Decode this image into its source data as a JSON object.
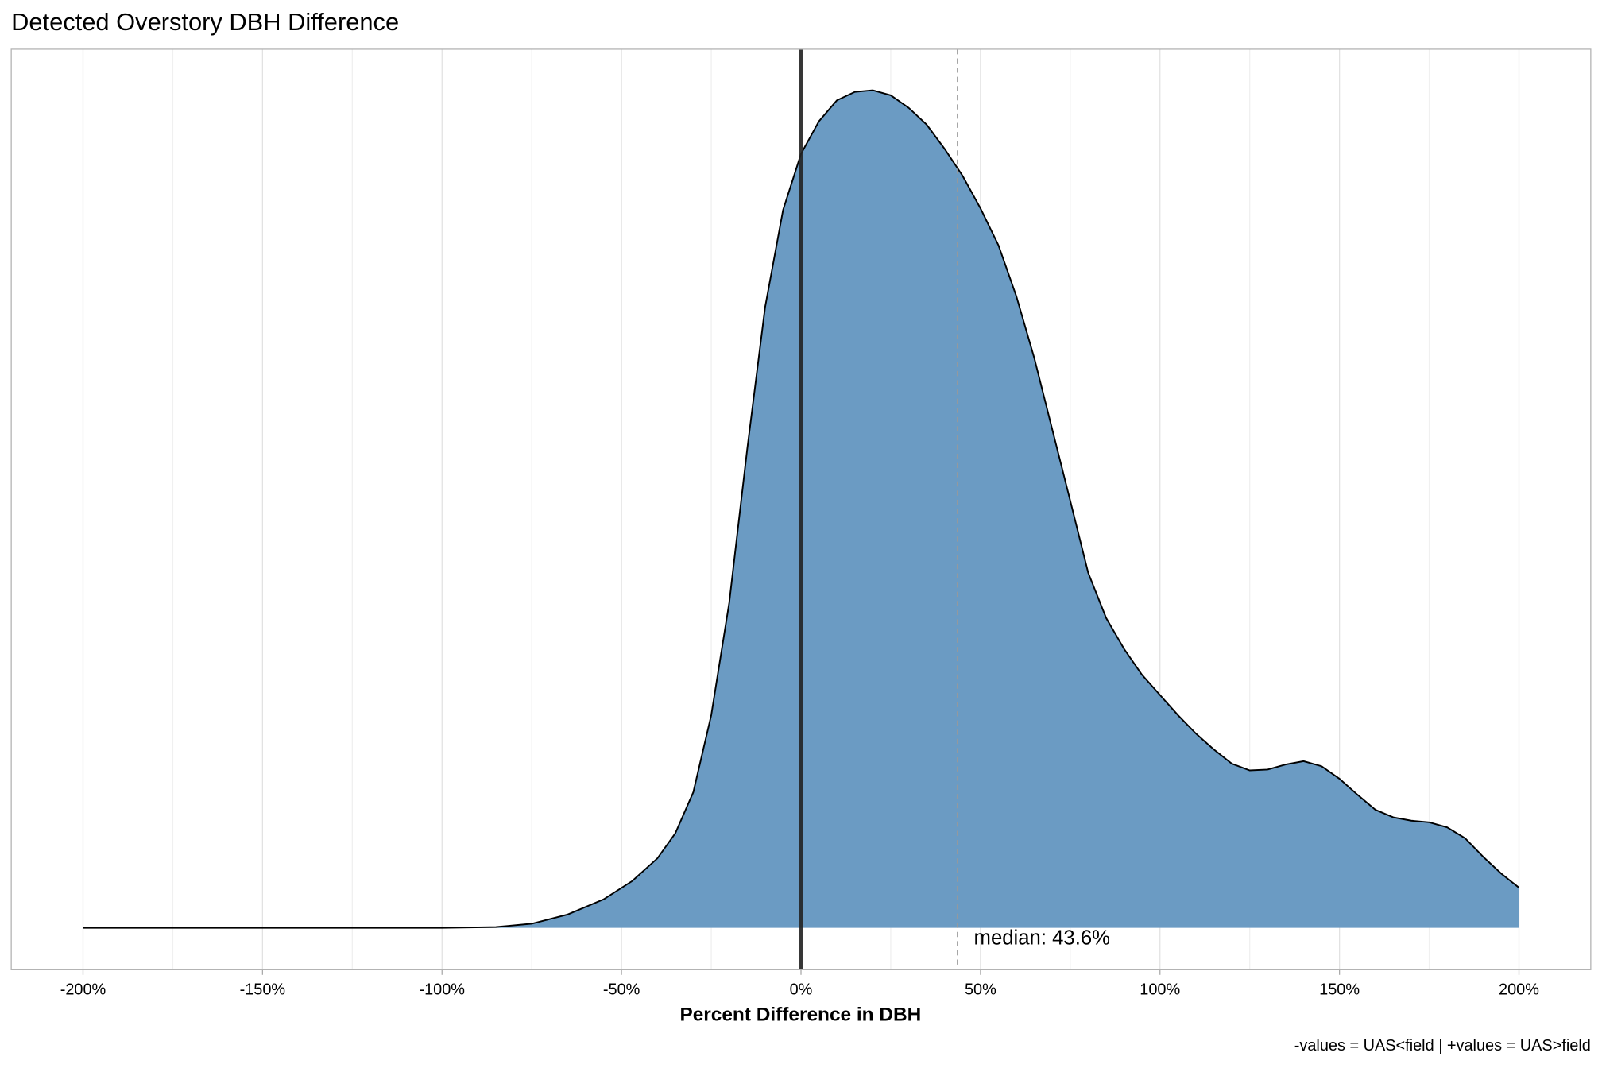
{
  "chart_data": {
    "type": "density",
    "title": "Detected Overstory DBH Difference",
    "x_label": "Percent Difference in DBH",
    "caption": "-values = UAS<field | +values = UAS>field",
    "x": [
      -200,
      -100,
      -85,
      -75,
      -65,
      -55,
      -47,
      -40,
      -35,
      -30,
      -25,
      -20,
      -15,
      -10,
      -5,
      0,
      5,
      10,
      15,
      20,
      25,
      30,
      35,
      40,
      45,
      50,
      55,
      60,
      65,
      70,
      75,
      80,
      85,
      90,
      95,
      100,
      105,
      110,
      115,
      120,
      125,
      130,
      135,
      140,
      145,
      150,
      155,
      160,
      165,
      170,
      175,
      180,
      185,
      190,
      195,
      200
    ],
    "y": [
      0,
      0,
      0.001,
      0.005,
      0.016,
      0.034,
      0.056,
      0.083,
      0.113,
      0.162,
      0.254,
      0.388,
      0.571,
      0.741,
      0.857,
      0.924,
      0.963,
      0.988,
      0.998,
      1.0,
      0.994,
      0.979,
      0.959,
      0.93,
      0.898,
      0.859,
      0.815,
      0.754,
      0.68,
      0.595,
      0.51,
      0.424,
      0.37,
      0.333,
      0.302,
      0.278,
      0.254,
      0.232,
      0.213,
      0.196,
      0.188,
      0.189,
      0.195,
      0.199,
      0.193,
      0.178,
      0.159,
      0.141,
      0.132,
      0.128,
      0.126,
      0.12,
      0.107,
      0.085,
      0.065,
      0.048
    ],
    "color": "#6b9bc3",
    "xlim": [
      -220,
      220
    ],
    "ylim": [
      -0.05,
      1.049
    ],
    "xticks": [
      {
        "value": -200,
        "label": "-200%"
      },
      {
        "value": -150,
        "label": "-150%"
      },
      {
        "value": -100,
        "label": "-100%"
      },
      {
        "value": -50,
        "label": "-50%"
      },
      {
        "value": 0,
        "label": "0%"
      },
      {
        "value": 50,
        "label": "50%"
      },
      {
        "value": 100,
        "label": "100%"
      },
      {
        "value": 150,
        "label": "150%"
      },
      {
        "value": 200,
        "label": "200%"
      }
    ],
    "minor_xticks": [
      -175,
      -125,
      -75,
      -25,
      25,
      75,
      125,
      175
    ],
    "grid": true,
    "zero_line": 0,
    "median": {
      "value": 43.6,
      "label": "median: 43.6%"
    }
  }
}
